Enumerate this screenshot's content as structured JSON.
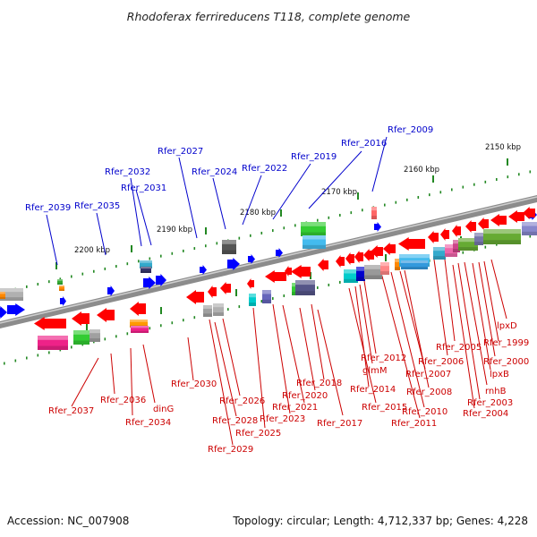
{
  "title": "Rhodoferax ferrireducens T118, complete genome",
  "footer": {
    "accession": "Accession: NC_007908",
    "summary": "Topology: circular; Length: 4,712,337 bp; Genes: 4,228"
  },
  "kbp_ticks": [
    "2150 kbp",
    "2160 kbp",
    "2170 kbp",
    "2180 kbp",
    "2190 kbp",
    "2200 kbp"
  ],
  "top_labels": [
    "Rfer_2009",
    "Rfer_2016",
    "Rfer_2019",
    "Rfer_2022",
    "Rfer_2024",
    "Rfer_2027",
    "Rfer_2032",
    "Rfer_2031",
    "Rfer_2035",
    "Rfer_2039"
  ],
  "bottom_labels": [
    "lpxD",
    "Rfer_1999",
    "Rfer_2000",
    "lpxB",
    "Rfer_2005",
    "Rfer_2006",
    "rnhB",
    "Rfer_2003",
    "Rfer_2004",
    "Rfer_2012",
    "glmM",
    "Rfer_2007",
    "Rfer_2014",
    "Rfer_2008",
    "Rfer_2015",
    "Rfer_2010",
    "Rfer_2011",
    "Rfer_2018",
    "Rfer_2020",
    "Rfer_2021",
    "Rfer_2017",
    "Rfer_2023",
    "Rfer_2025",
    "Rfer_2026",
    "Rfer_2028",
    "Rfer_2029",
    "Rfer_2030",
    "Rfer_2036",
    "dinG",
    "Rfer_2034",
    "Rfer_2037"
  ],
  "colors": {
    "forward_gene": "#0000ff",
    "reverse_gene": "#ff0000",
    "top_label": "#0000cc",
    "bottom_label": "#cc0000",
    "backbone": "#8a8a8a",
    "tick": "#228822"
  }
}
